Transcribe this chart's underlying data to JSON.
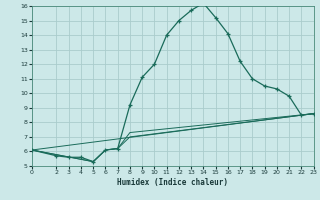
{
  "xlabel": "Humidex (Indice chaleur)",
  "bg_color": "#cce8e8",
  "grid_color": "#aacccc",
  "line_color": "#1a6b5a",
  "xlim": [
    0,
    23
  ],
  "ylim": [
    5,
    16
  ],
  "xticks": [
    0,
    2,
    3,
    4,
    5,
    6,
    7,
    8,
    9,
    10,
    11,
    12,
    13,
    14,
    15,
    16,
    17,
    18,
    19,
    20,
    21,
    22,
    23
  ],
  "yticks": [
    5,
    6,
    7,
    8,
    9,
    10,
    11,
    12,
    13,
    14,
    15,
    16
  ],
  "series_main": {
    "x": [
      0,
      2,
      3,
      4,
      5,
      6,
      7,
      8,
      9,
      10,
      11,
      12,
      13,
      14,
      15,
      16,
      17,
      18,
      19,
      20,
      21,
      22,
      23
    ],
    "y": [
      6.1,
      5.7,
      5.6,
      5.6,
      5.3,
      6.1,
      6.2,
      9.2,
      11.1,
      12.0,
      14.0,
      15.0,
      15.7,
      16.2,
      15.2,
      14.1,
      12.2,
      11.0,
      10.5,
      10.3,
      9.8,
      8.5,
      8.6
    ]
  },
  "series_lines": [
    {
      "x": [
        0,
        5,
        6,
        7,
        8,
        23
      ],
      "y": [
        6.1,
        5.3,
        6.1,
        6.2,
        7.0,
        8.6
      ]
    },
    {
      "x": [
        0,
        5,
        6,
        7,
        8,
        23
      ],
      "y": [
        6.1,
        5.3,
        6.1,
        6.2,
        7.3,
        8.6
      ]
    },
    {
      "x": [
        0,
        23
      ],
      "y": [
        6.1,
        8.6
      ]
    }
  ]
}
